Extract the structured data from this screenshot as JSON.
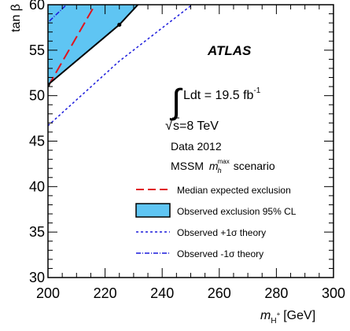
{
  "chart_data": {
    "type": "line",
    "xlabel_main": "m",
    "xlabel_sub": "H",
    "xlabel_sup": "+",
    "xlabel_unit": "[GeV]",
    "ylabel": "tan β",
    "xlim": [
      200,
      300
    ],
    "ylim": [
      30,
      60
    ],
    "x_ticks": [
      200,
      220,
      240,
      260,
      280,
      300
    ],
    "y_ticks": [
      30,
      35,
      40,
      45,
      50,
      55,
      60
    ],
    "grid": false,
    "legend_placement": "right",
    "series": [
      {
        "name": "Median expected exclusion",
        "style": "dashed",
        "color": "#e0141e",
        "points": [
          [
            200,
            51.0
          ],
          [
            216.5,
            60.0
          ]
        ]
      },
      {
        "name": "Observed exclusion 95% CL",
        "style": "filled",
        "color": "#000000",
        "fill": "#5fc5f3",
        "points": [
          [
            200,
            51.2
          ],
          [
            225,
            57.8
          ],
          [
            231.5,
            60.0
          ]
        ],
        "markers": [
          [
            200,
            51.2
          ],
          [
            225,
            57.8
          ]
        ]
      },
      {
        "name": "Observed +1σ theory",
        "style": "dotted",
        "color": "#1a1adc",
        "points": [
          [
            200,
            46.7
          ],
          [
            225,
            53.8
          ],
          [
            250.5,
            60.0
          ]
        ]
      },
      {
        "name": "Observed -1σ theory",
        "style": "dashdot",
        "color": "#1a1adc",
        "points": [
          [
            200.5,
            58.2
          ],
          [
            206.5,
            60.0
          ]
        ]
      }
    ],
    "annotations": {
      "experiment": "ATLAS",
      "lumi_text": "Ldt = 19.5 fb",
      "lumi_exp": "-1",
      "sqrt_s": "s=8 TeV",
      "data_label": "Data 2012",
      "scenario_prefix": "MSSM",
      "scenario_symbol": "m",
      "scenario_sub": "h",
      "scenario_sup": "max",
      "scenario_suffix": "scenario"
    }
  }
}
